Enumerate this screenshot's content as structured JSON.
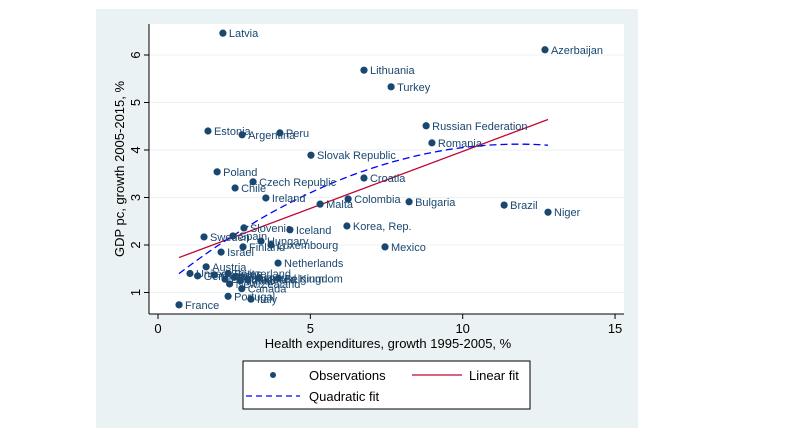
{
  "chart_data": {
    "type": "scatter",
    "title": "",
    "xlabel": "Health expenditures, growth 1995-2005, %",
    "ylabel": "GDP pc, growth 2005-2015, %",
    "xlim": [
      -0.3,
      15.3
    ],
    "ylim": [
      0.55,
      6.65
    ],
    "xticks": [
      0,
      5,
      10,
      15
    ],
    "yticks": [
      1,
      2,
      3,
      4,
      5,
      6
    ],
    "grid": "horizontal",
    "colors": {
      "outer_background": "#eaf2f3",
      "plot_background": "#ffffff",
      "gridline": "#eaf2f3",
      "marker": "#1a476f",
      "linear_fit": "#c10534",
      "quadratic_fit": "#0000ff"
    },
    "legend": {
      "position": "bottom",
      "entries": [
        {
          "label": "Observations",
          "kind": "marker"
        },
        {
          "label": "Linear fit",
          "kind": "solid-line"
        },
        {
          "label": "Quadratic fit",
          "kind": "dashed-line"
        }
      ]
    },
    "series": [
      {
        "name": "Observations",
        "points": [
          {
            "label": "Latvia",
            "x": 2.13,
            "y": 6.46
          },
          {
            "label": "Azerbaijan",
            "x": 12.7,
            "y": 6.11
          },
          {
            "label": "Lithuania",
            "x": 6.76,
            "y": 5.68
          },
          {
            "label": "Turkey",
            "x": 7.65,
            "y": 5.33
          },
          {
            "label": "Estonia",
            "x": 1.64,
            "y": 4.4
          },
          {
            "label": "Argentina",
            "x": 2.76,
            "y": 4.32
          },
          {
            "label": "Peru",
            "x": 4.0,
            "y": 4.36
          },
          {
            "label": "Russian Federation",
            "x": 8.8,
            "y": 4.51
          },
          {
            "label": "Romania",
            "x": 8.99,
            "y": 4.15
          },
          {
            "label": "Slovak Republic",
            "x": 5.02,
            "y": 3.89
          },
          {
            "label": "Poland",
            "x": 1.94,
            "y": 3.54
          },
          {
            "label": "Czech Republic",
            "x": 3.12,
            "y": 3.33
          },
          {
            "label": "Chile",
            "x": 2.53,
            "y": 3.2
          },
          {
            "label": "Croatia",
            "x": 6.76,
            "y": 3.41
          },
          {
            "label": "Ireland",
            "x": 3.54,
            "y": 2.99
          },
          {
            "label": "Malta",
            "x": 5.32,
            "y": 2.86
          },
          {
            "label": "Colombia",
            "x": 6.24,
            "y": 2.97
          },
          {
            "label": "Bulgaria",
            "x": 8.24,
            "y": 2.91
          },
          {
            "label": "Brazil",
            "x": 11.36,
            "y": 2.84
          },
          {
            "label": "Niger",
            "x": 12.8,
            "y": 2.69
          },
          {
            "label": "Korea, Rep.",
            "x": 6.2,
            "y": 2.4
          },
          {
            "label": "Mexico",
            "x": 7.45,
            "y": 1.96
          },
          {
            "label": "Slovenia",
            "x": 2.82,
            "y": 2.36
          },
          {
            "label": "Iceland",
            "x": 4.33,
            "y": 2.32
          },
          {
            "label": "Sweden",
            "x": 1.51,
            "y": 2.17
          },
          {
            "label": "Spain",
            "x": 2.46,
            "y": 2.19
          },
          {
            "label": "Hungary",
            "x": 3.38,
            "y": 2.08
          },
          {
            "label": "Luxembourg",
            "x": 3.71,
            "y": 2.0
          },
          {
            "label": "Finland",
            "x": 2.79,
            "y": 1.96
          },
          {
            "label": "Israel",
            "x": 2.07,
            "y": 1.85
          },
          {
            "label": "Netherlands",
            "x": 3.94,
            "y": 1.62
          },
          {
            "label": "Austria",
            "x": 1.58,
            "y": 1.54
          },
          {
            "label": "United States",
            "x": 1.05,
            "y": 1.4
          },
          {
            "label": "Germany",
            "x": 1.3,
            "y": 1.35
          },
          {
            "label": "Greece",
            "x": 1.85,
            "y": 1.37
          },
          {
            "label": "Switzerland",
            "x": 2.3,
            "y": 1.4
          },
          {
            "label": "Denmark",
            "x": 2.2,
            "y": 1.28
          },
          {
            "label": "Norway",
            "x": 2.5,
            "y": 1.32
          },
          {
            "label": "Japan",
            "x": 2.7,
            "y": 1.25
          },
          {
            "label": "Australia",
            "x": 2.95,
            "y": 1.27
          },
          {
            "label": "United Kingdom",
            "x": 3.3,
            "y": 1.3
          },
          {
            "label": "Belgium",
            "x": 3.95,
            "y": 1.3
          },
          {
            "label": "New Zealand",
            "x": 2.35,
            "y": 1.18
          },
          {
            "label": "Canada",
            "x": 2.75,
            "y": 1.08
          },
          {
            "label": "Portugal",
            "x": 2.3,
            "y": 0.92
          },
          {
            "label": "Italy",
            "x": 3.05,
            "y": 0.86
          },
          {
            "label": "France",
            "x": 0.69,
            "y": 0.74
          }
        ]
      }
    ],
    "fits": {
      "linear": {
        "name": "Linear fit",
        "x_range": [
          0.69,
          12.8
        ],
        "intercept": 1.57,
        "slope": 0.24
      },
      "quadratic": {
        "name": "Quadratic fit",
        "x_range": [
          0.69,
          12.8
        ],
        "a": 1.05,
        "b": 0.52,
        "c": -0.022
      }
    }
  }
}
